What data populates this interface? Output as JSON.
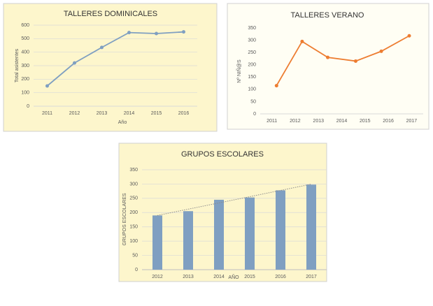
{
  "chart_data": [
    {
      "type": "line",
      "title": "TALLERES DOMINICALES",
      "x_label": "Año",
      "y_label": "Total asistentes",
      "categories": [
        "2011",
        "2012",
        "2013",
        "2014",
        "2015",
        "2016"
      ],
      "values": [
        150,
        320,
        435,
        545,
        538,
        550
      ],
      "color": "#7f9fc1",
      "ylim": [
        0,
        600
      ],
      "yticks": [
        0,
        100,
        200,
        300,
        400,
        500,
        600
      ],
      "grid": true
    },
    {
      "type": "scatterline",
      "title": "TALLERES VERANO",
      "y_label": "Nº NIÑ@S",
      "x": [
        2011.2,
        2012.3,
        2013.4,
        2014.6,
        2015.7,
        2016.9
      ],
      "values": [
        115,
        295,
        230,
        215,
        255,
        318
      ],
      "color": "#ed7d31",
      "xlim": [
        2010.5,
        2017.5
      ],
      "xticks": [
        2011,
        2012,
        2013,
        2014,
        2015,
        2016,
        2017
      ],
      "ylim": [
        0,
        350
      ],
      "yticks": [
        0,
        50,
        100,
        150,
        200,
        250,
        300,
        350
      ],
      "grid": false
    },
    {
      "type": "bar",
      "title": "GRUPOS ESCOLARES",
      "x_label": "AÑO",
      "y_label": "GRUPOS ESCOLARES",
      "categories": [
        "2012",
        "2013",
        "2014",
        "2015",
        "2016",
        "2017"
      ],
      "values": [
        190,
        205,
        245,
        253,
        278,
        298
      ],
      "color": "#7f9fc1",
      "ylim": [
        0,
        350
      ],
      "yticks": [
        0,
        50,
        100,
        150,
        200,
        250,
        300,
        350
      ],
      "grid": true,
      "trendline": true
    }
  ]
}
